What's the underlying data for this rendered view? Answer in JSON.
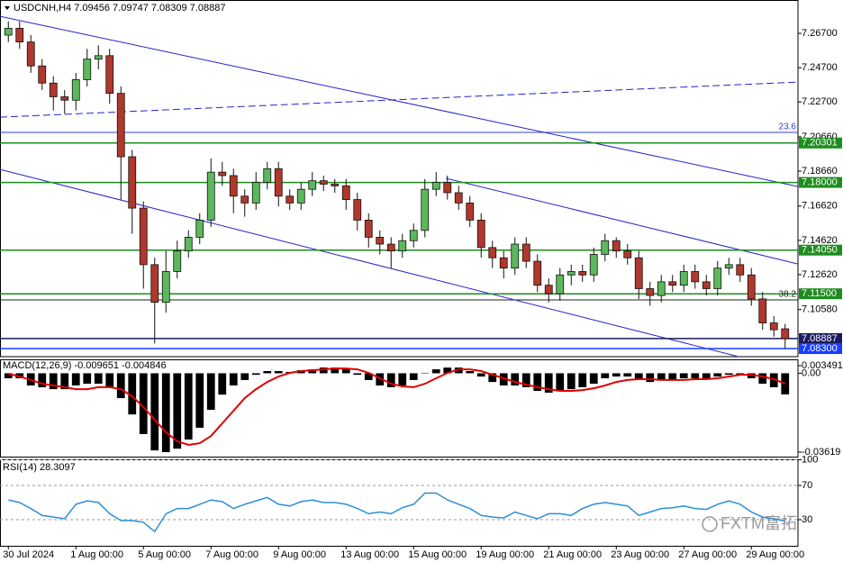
{
  "header": "USDCNH,H4  7.09456 7.09747 7.08309 7.08887",
  "watermark": "FXTM富拓",
  "chart_data": [
    {
      "type": "candlestick",
      "categories": [
        "30 Jul 2024",
        null,
        null,
        null,
        null,
        null,
        "1 Aug 00:00",
        null,
        null,
        null,
        null,
        null,
        "5 Aug 00:00",
        null,
        null,
        null,
        null,
        null,
        "7 Aug 00:00",
        null,
        null,
        null,
        null,
        null,
        "9 Aug 00:00",
        null,
        null,
        null,
        null,
        null,
        "13 Aug 00:00",
        null,
        null,
        null,
        null,
        null,
        "15 Aug 00:00",
        null,
        null,
        null,
        null,
        null,
        "19 Aug 00:00",
        null,
        null,
        null,
        null,
        null,
        "21 Aug 00:00",
        null,
        null,
        null,
        null,
        null,
        "23 Aug 00:00",
        null,
        null,
        null,
        null,
        null,
        "27 Aug 00:00",
        null,
        null,
        null,
        null,
        null,
        "29 Aug 00:00",
        null,
        null,
        null
      ],
      "open": [
        7.266,
        7.27,
        7.262,
        7.248,
        7.238,
        7.23,
        7.228,
        7.24,
        7.252,
        7.254,
        7.232,
        7.195,
        7.165,
        7.132,
        7.11,
        7.128,
        7.14,
        7.148,
        7.158,
        7.186,
        7.184,
        7.172,
        7.168,
        7.18,
        7.188,
        7.172,
        7.168,
        7.176,
        7.181,
        7.179,
        7.178,
        7.17,
        7.158,
        7.148,
        7.144,
        7.14,
        7.146,
        7.152,
        7.176,
        7.18,
        7.174,
        7.168,
        7.158,
        7.142,
        7.136,
        7.13,
        7.144,
        7.134,
        7.12,
        7.115,
        7.126,
        7.128,
        7.126,
        7.138,
        7.146,
        7.14,
        7.136,
        7.118,
        7.114,
        7.122,
        7.12,
        7.128,
        7.122,
        7.118,
        7.13,
        7.132,
        7.126,
        7.112,
        7.098,
        7.09456
      ],
      "high": [
        7.274,
        7.274,
        7.266,
        7.252,
        7.242,
        7.234,
        7.244,
        7.258,
        7.26,
        7.258,
        7.236,
        7.199,
        7.169,
        7.136,
        7.14,
        7.146,
        7.152,
        7.162,
        7.194,
        7.192,
        7.188,
        7.176,
        7.186,
        7.192,
        7.192,
        7.176,
        7.18,
        7.186,
        7.184,
        7.182,
        7.182,
        7.174,
        7.162,
        7.152,
        7.148,
        7.15,
        7.156,
        7.182,
        7.186,
        7.184,
        7.178,
        7.172,
        7.162,
        7.146,
        7.14,
        7.148,
        7.148,
        7.138,
        7.124,
        7.13,
        7.132,
        7.132,
        7.142,
        7.15,
        7.148,
        7.144,
        7.14,
        7.122,
        7.126,
        7.126,
        7.132,
        7.132,
        7.126,
        7.134,
        7.136,
        7.136,
        7.13,
        7.116,
        7.102,
        7.09747
      ],
      "low": [
        7.262,
        7.258,
        7.244,
        7.234,
        7.222,
        7.22,
        7.222,
        7.236,
        7.246,
        7.226,
        7.17,
        7.15,
        7.118,
        7.086,
        7.104,
        7.124,
        7.136,
        7.144,
        7.154,
        7.178,
        7.162,
        7.16,
        7.164,
        7.176,
        7.166,
        7.164,
        7.164,
        7.172,
        7.175,
        7.174,
        7.164,
        7.152,
        7.142,
        7.138,
        7.13,
        7.136,
        7.142,
        7.148,
        7.172,
        7.17,
        7.164,
        7.154,
        7.136,
        7.13,
        7.124,
        7.126,
        7.13,
        7.116,
        7.11,
        7.111,
        7.12,
        7.122,
        7.122,
        7.134,
        7.136,
        7.132,
        7.112,
        7.108,
        7.11,
        7.116,
        7.116,
        7.118,
        7.114,
        7.114,
        7.126,
        7.122,
        7.108,
        7.094,
        7.09,
        7.08309
      ],
      "close": [
        7.27,
        7.262,
        7.248,
        7.238,
        7.23,
        7.228,
        7.24,
        7.252,
        7.254,
        7.232,
        7.195,
        7.165,
        7.132,
        7.11,
        7.128,
        7.14,
        7.148,
        7.158,
        7.186,
        7.184,
        7.172,
        7.168,
        7.18,
        7.188,
        7.172,
        7.168,
        7.176,
        7.181,
        7.179,
        7.178,
        7.17,
        7.158,
        7.148,
        7.144,
        7.14,
        7.146,
        7.152,
        7.176,
        7.18,
        7.174,
        7.168,
        7.158,
        7.142,
        7.136,
        7.13,
        7.144,
        7.134,
        7.12,
        7.115,
        7.126,
        7.128,
        7.126,
        7.138,
        7.146,
        7.14,
        7.136,
        7.118,
        7.114,
        7.122,
        7.12,
        7.128,
        7.122,
        7.118,
        7.13,
        7.132,
        7.126,
        7.112,
        7.098,
        7.094,
        7.08887
      ],
      "colors": {
        "up": "#5cb85c",
        "down": "#b0382c",
        "outline": "#111111"
      },
      "ylim": [
        7.0783,
        7.2865
      ],
      "yticks": [
        {
          "value": 7.267,
          "label": "7.26700"
        },
        {
          "value": 7.247,
          "label": "7.24700"
        },
        {
          "value": 7.227,
          "label": "7.22700"
        },
        {
          "value": 7.2066,
          "label": "7.20660"
        },
        {
          "value": 7.1866,
          "label": "7.18660"
        },
        {
          "value": 7.1662,
          "label": "7.16620"
        },
        {
          "value": 7.1462,
          "label": "7.14620"
        },
        {
          "value": 7.1262,
          "label": "7.12620"
        },
        {
          "value": 7.1058,
          "label": "7.10580"
        }
      ],
      "levels": [
        {
          "value": 7.20301,
          "label": "7.20301",
          "color": "#1e8c1e"
        },
        {
          "value": 7.18,
          "label": "7.18000",
          "color": "#1e8c1e"
        },
        {
          "value": 7.1405,
          "label": "7.14050",
          "color": "#1e8c1e"
        },
        {
          "value": 7.115,
          "label": "7.11500",
          "color": "#1e8c1e"
        },
        {
          "value": 7.08887,
          "label": "7.08887",
          "color": "#1a1a5e"
        },
        {
          "value": 7.083,
          "label": "7.08300",
          "color": "#1a3cff"
        }
      ],
      "fib_levels": [
        {
          "value": 7.2092,
          "label": "23.6",
          "color": "#3344cc"
        },
        {
          "value": 7.1114,
          "label": "38.2",
          "color": "#222222"
        }
      ],
      "trendlines": [
        {
          "x": [
            -0.74,
            70.14
          ],
          "y": [
            7.277,
            7.1776
          ],
          "color": "#2323c8",
          "style": "solid"
        },
        {
          "x": [
            -0.74,
            64.86
          ],
          "y": [
            7.1876,
            7.0783
          ],
          "color": "#2323c8",
          "style": "solid"
        },
        {
          "x": [
            -0.74,
            70.14
          ],
          "y": [
            7.2181,
            7.2386
          ],
          "color": "#2323c8",
          "style": "dashed"
        },
        {
          "x": [
            38.86,
            70.14
          ],
          "y": [
            7.1824,
            7.1324
          ],
          "color": "#2323c8",
          "style": "solid"
        }
      ]
    },
    {
      "type": "macd",
      "title": "MACD(12,26,9) -0.009651 -0.004846",
      "histogram": {
        "color": "#000000",
        "values": [
          -0.0023,
          -0.0023,
          -0.0056,
          -0.0064,
          -0.0073,
          -0.0073,
          -0.0056,
          -0.0048,
          -0.0048,
          -0.0064,
          -0.0114,
          -0.0189,
          -0.0279,
          -0.0354,
          -0.0362,
          -0.0346,
          -0.0304,
          -0.025,
          -0.0168,
          -0.0098,
          -0.0056,
          -0.0031,
          -0.0007,
          0.001,
          0.001,
          0.0006,
          0.0014,
          0.0018,
          0.0026,
          0.0026,
          0.0018,
          -0.0007,
          -0.0031,
          -0.0056,
          -0.0064,
          -0.0056,
          -0.0031,
          0.0002,
          0.0018,
          0.0026,
          0.0026,
          0.001,
          -0.0015,
          -0.004,
          -0.0056,
          -0.0056,
          -0.0064,
          -0.0081,
          -0.0089,
          -0.0081,
          -0.0073,
          -0.0064,
          -0.0048,
          -0.0023,
          -0.0015,
          -0.0015,
          -0.0031,
          -0.004,
          -0.0031,
          -0.0031,
          -0.0023,
          -0.0023,
          -0.0027,
          -0.0015,
          -0.0007,
          -0.0007,
          -0.0023,
          -0.0048,
          -0.0064,
          -0.0097
        ]
      },
      "signal": {
        "color": "#e00000",
        "values": [
          -0.0002,
          -0.0015,
          -0.0031,
          -0.0048,
          -0.0056,
          -0.0064,
          -0.0073,
          -0.0073,
          -0.0064,
          -0.0064,
          -0.0073,
          -0.0106,
          -0.0155,
          -0.0213,
          -0.0271,
          -0.0312,
          -0.0329,
          -0.0321,
          -0.0288,
          -0.023,
          -0.0172,
          -0.0114,
          -0.0073,
          -0.004,
          -0.0015,
          0.0002,
          0.001,
          0.0014,
          0.0018,
          0.0022,
          0.0022,
          0.0018,
          0.0002,
          -0.0023,
          -0.0048,
          -0.006,
          -0.0064,
          -0.0048,
          -0.0023,
          0.0002,
          0.0018,
          0.0018,
          0.001,
          -0.0007,
          -0.0023,
          -0.004,
          -0.0052,
          -0.0064,
          -0.0073,
          -0.0081,
          -0.0081,
          -0.0077,
          -0.0069,
          -0.0056,
          -0.004,
          -0.0031,
          -0.0027,
          -0.0027,
          -0.0031,
          -0.0031,
          -0.0031,
          -0.0027,
          -0.0027,
          -0.0023,
          -0.0015,
          -0.0007,
          -0.0007,
          -0.0015,
          -0.0027,
          -0.0048
        ]
      },
      "ylim": [
        -0.03867,
        0.00597
      ],
      "yticks": [
        0.003491,
        {
          "value": 0,
          "label": "0.00"
        },
        -0.03619
      ]
    },
    {
      "type": "rsi",
      "title": "RSI(14) 28.3097",
      "color": "#2a8fd6",
      "values": [
        53,
        50,
        43,
        35,
        33,
        31,
        48,
        52,
        50,
        37,
        29,
        29,
        27,
        16,
        37,
        43,
        43,
        48,
        53,
        51,
        43,
        48,
        52,
        56,
        48,
        46,
        51,
        53,
        50,
        50,
        48,
        43,
        37,
        39,
        37,
        44,
        48,
        61,
        61,
        53,
        48,
        43,
        35,
        33,
        32,
        39,
        35,
        31,
        37,
        37,
        35,
        43,
        48,
        50,
        48,
        46,
        35,
        39,
        43,
        44,
        46,
        43,
        42,
        48,
        52,
        48,
        39,
        33,
        31,
        28.3
      ],
      "ylim": [
        0,
        100
      ],
      "yticks": [
        100,
        70,
        30
      ],
      "grid": true
    }
  ]
}
